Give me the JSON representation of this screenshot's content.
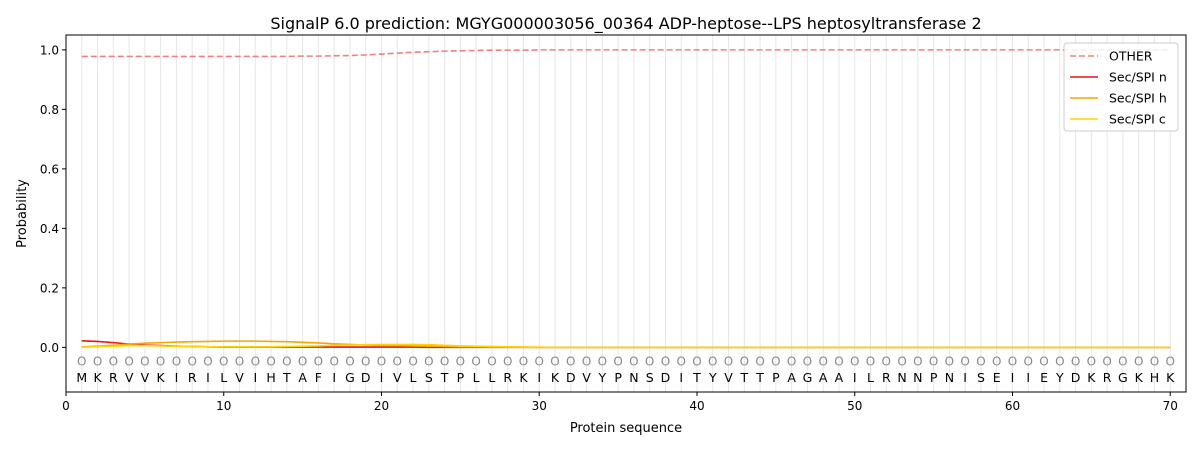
{
  "chart_data": {
    "type": "line",
    "title": "SignalP 6.0 prediction: MGYG000003056_00364 ADP-heptose--LPS heptosyltransferase 2",
    "xlabel": "Protein sequence",
    "ylabel": "Probability",
    "xlim": [
      0,
      71
    ],
    "ylim": [
      -0.15,
      1.05
    ],
    "x_ticks": [
      0,
      10,
      20,
      30,
      40,
      50,
      60,
      70
    ],
    "y_ticks": [
      0.0,
      0.2,
      0.4,
      0.6,
      0.8,
      1.0
    ],
    "x_tick_labels": [
      "0",
      "10",
      "20",
      "30",
      "40",
      "50",
      "60",
      "70"
    ],
    "y_tick_labels": [
      "0.0",
      "0.2",
      "0.4",
      "0.6",
      "0.8",
      "1.0"
    ],
    "grid": "vertical lines at each residue",
    "legend_position": "top-right",
    "sequence": [
      "M",
      "K",
      "R",
      "V",
      "V",
      "K",
      "I",
      "R",
      "I",
      "L",
      "V",
      "I",
      "H",
      "T",
      "A",
      "F",
      "I",
      "G",
      "D",
      "I",
      "V",
      "L",
      "S",
      "T",
      "P",
      "L",
      "L",
      "R",
      "K",
      "I",
      "K",
      "D",
      "V",
      "Y",
      "P",
      "N",
      "S",
      "D",
      "I",
      "T",
      "Y",
      "V",
      "T",
      "T",
      "P",
      "A",
      "G",
      "A",
      "A",
      "I",
      "L",
      "R",
      "N",
      "N",
      "P",
      "N",
      "I",
      "S",
      "E",
      "I",
      "I",
      "E",
      "Y",
      "D",
      "K",
      "R",
      "G",
      "K",
      "H",
      "K"
    ],
    "region_labels": [
      "O",
      "O",
      "O",
      "O",
      "O",
      "O",
      "O",
      "O",
      "O",
      "O",
      "O",
      "O",
      "O",
      "O",
      "O",
      "O",
      "O",
      "O",
      "O",
      "O",
      "O",
      "O",
      "O",
      "O",
      "O",
      "O",
      "O",
      "O",
      "O",
      "O",
      "O",
      "O",
      "O",
      "O",
      "O",
      "O",
      "O",
      "O",
      "O",
      "O",
      "O",
      "O",
      "O",
      "O",
      "O",
      "O",
      "O",
      "O",
      "O",
      "O",
      "O",
      "O",
      "O",
      "O",
      "O",
      "O",
      "O",
      "O",
      "O",
      "O",
      "O",
      "O",
      "O",
      "O",
      "O",
      "O",
      "O",
      "O",
      "O",
      "O"
    ],
    "series": [
      {
        "name": "OTHER",
        "color": "#f08080",
        "style": "dashed",
        "values": [
          0.978,
          0.978,
          0.978,
          0.978,
          0.978,
          0.978,
          0.978,
          0.978,
          0.978,
          0.978,
          0.978,
          0.978,
          0.978,
          0.978,
          0.979,
          0.979,
          0.98,
          0.981,
          0.983,
          0.986,
          0.989,
          0.992,
          0.994,
          0.996,
          0.997,
          0.998,
          0.999,
          0.999,
          0.999,
          1.0,
          1.0,
          1.0,
          1.0,
          1.0,
          1.0,
          1.0,
          1.0,
          1.0,
          1.0,
          1.0,
          1.0,
          1.0,
          1.0,
          1.0,
          1.0,
          1.0,
          1.0,
          1.0,
          1.0,
          1.0,
          1.0,
          1.0,
          1.0,
          1.0,
          1.0,
          1.0,
          1.0,
          1.0,
          1.0,
          1.0,
          1.0,
          1.0,
          1.0,
          1.0,
          1.0,
          1.0,
          1.0,
          1.0,
          1.0,
          1.0
        ]
      },
      {
        "name": "Sec/SPI n",
        "color": "#ee1111",
        "style": "solid",
        "values": [
          0.022,
          0.02,
          0.016,
          0.011,
          0.008,
          0.006,
          0.004,
          0.003,
          0.002,
          0.001,
          0.001,
          0.001,
          0.001,
          0.001,
          0.001,
          0.001,
          0.001,
          0.001,
          0.001,
          0.001,
          0.001,
          0.001,
          0.0,
          0.0,
          0.0,
          0.0,
          0.0,
          0.0,
          0.0,
          0.0,
          0.0,
          0.0,
          0.0,
          0.0,
          0.0,
          0.0,
          0.0,
          0.0,
          0.0,
          0.0,
          0.0,
          0.0,
          0.0,
          0.0,
          0.0,
          0.0,
          0.0,
          0.0,
          0.0,
          0.0,
          0.0,
          0.0,
          0.0,
          0.0,
          0.0,
          0.0,
          0.0,
          0.0,
          0.0,
          0.0,
          0.0,
          0.0,
          0.0,
          0.0,
          0.0,
          0.0,
          0.0,
          0.0,
          0.0,
          0.0
        ]
      },
      {
        "name": "Sec/SPI h",
        "color": "#f5a800",
        "style": "solid",
        "values": [
          0.002,
          0.004,
          0.007,
          0.011,
          0.014,
          0.016,
          0.018,
          0.019,
          0.02,
          0.021,
          0.021,
          0.021,
          0.02,
          0.019,
          0.017,
          0.015,
          0.012,
          0.01,
          0.008,
          0.007,
          0.006,
          0.005,
          0.004,
          0.003,
          0.002,
          0.002,
          0.001,
          0.001,
          0.001,
          0.0,
          0.0,
          0.0,
          0.0,
          0.0,
          0.0,
          0.0,
          0.0,
          0.0,
          0.0,
          0.0,
          0.0,
          0.0,
          0.0,
          0.0,
          0.0,
          0.0,
          0.0,
          0.0,
          0.0,
          0.0,
          0.0,
          0.0,
          0.0,
          0.0,
          0.0,
          0.0,
          0.0,
          0.0,
          0.0,
          0.0,
          0.0,
          0.0,
          0.0,
          0.0,
          0.0,
          0.0,
          0.0,
          0.0,
          0.0,
          0.0
        ]
      },
      {
        "name": "Sec/SPI c",
        "color": "#ffd400",
        "style": "solid",
        "values": [
          0.001,
          0.002,
          0.004,
          0.006,
          0.006,
          0.005,
          0.004,
          0.003,
          0.002,
          0.002,
          0.002,
          0.002,
          0.002,
          0.003,
          0.004,
          0.005,
          0.007,
          0.008,
          0.009,
          0.01,
          0.01,
          0.01,
          0.009,
          0.007,
          0.005,
          0.004,
          0.003,
          0.002,
          0.001,
          0.001,
          0.0,
          0.0,
          0.0,
          0.0,
          0.0,
          0.0,
          0.0,
          0.0,
          0.0,
          0.0,
          0.0,
          0.0,
          0.0,
          0.0,
          0.0,
          0.0,
          0.0,
          0.0,
          0.0,
          0.0,
          0.0,
          0.0,
          0.0,
          0.0,
          0.0,
          0.0,
          0.0,
          0.0,
          0.0,
          0.0,
          0.0,
          0.0,
          0.0,
          0.0,
          0.0,
          0.0,
          0.0,
          0.0,
          0.0,
          0.0
        ]
      }
    ]
  }
}
